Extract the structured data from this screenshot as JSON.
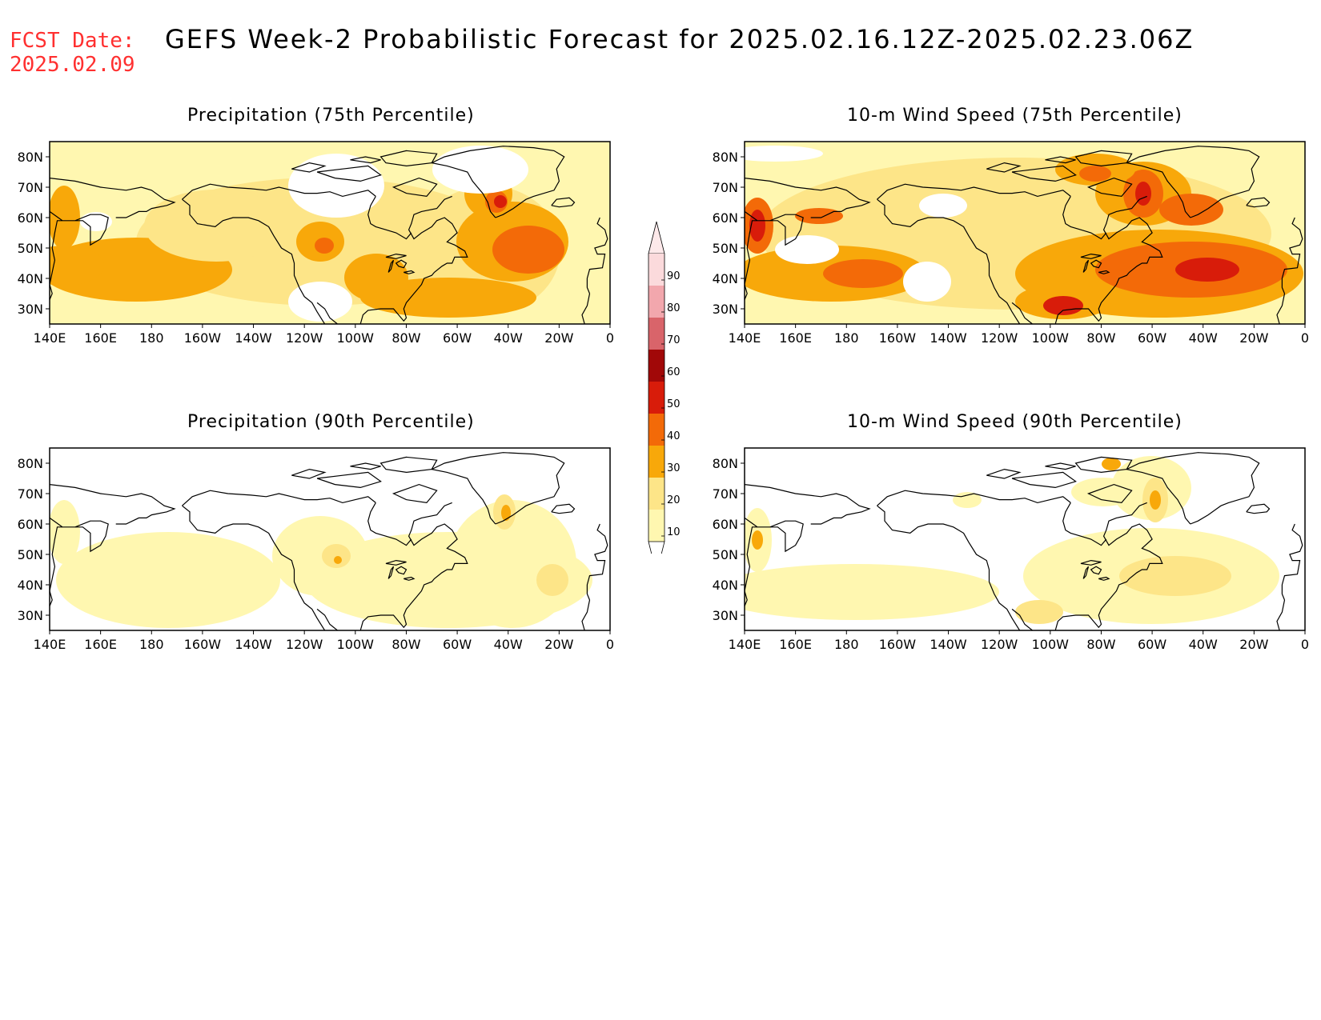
{
  "header": {
    "fcst_label": "FCST Date:",
    "fcst_date": "2025.02.09",
    "title": "GEFS Week-2 Probabilistic Forecast for 2025.02.16.12Z-2025.02.23.06Z"
  },
  "axes": {
    "lat_ticks": [
      "80N",
      "70N",
      "60N",
      "50N",
      "40N",
      "30N"
    ],
    "lon_ticks": [
      "140E",
      "160E",
      "180",
      "160W",
      "140W",
      "120W",
      "100W",
      "80W",
      "60W",
      "40W",
      "20W",
      "0"
    ]
  },
  "colors": {
    "c10": "#fff7b0",
    "c20": "#fde588",
    "c30": "#f8a80a",
    "c40": "#f36a08",
    "c50": "#d81c0a",
    "c60": "#a10808",
    "c70": "#d9646a",
    "c80": "#f2a7ad",
    "c90": "#fbdadc"
  },
  "colorbar": {
    "levels": [
      "90",
      "80",
      "70",
      "60",
      "50",
      "40",
      "30",
      "20",
      "10"
    ]
  },
  "panels": [
    {
      "title": "Precipitation (75th Percentile)"
    },
    {
      "title": "10-m Wind Speed (75th Percentile)"
    },
    {
      "title": "Precipitation (90th Percentile)"
    },
    {
      "title": "10-m Wind Speed (90th Percentile)"
    }
  ]
}
